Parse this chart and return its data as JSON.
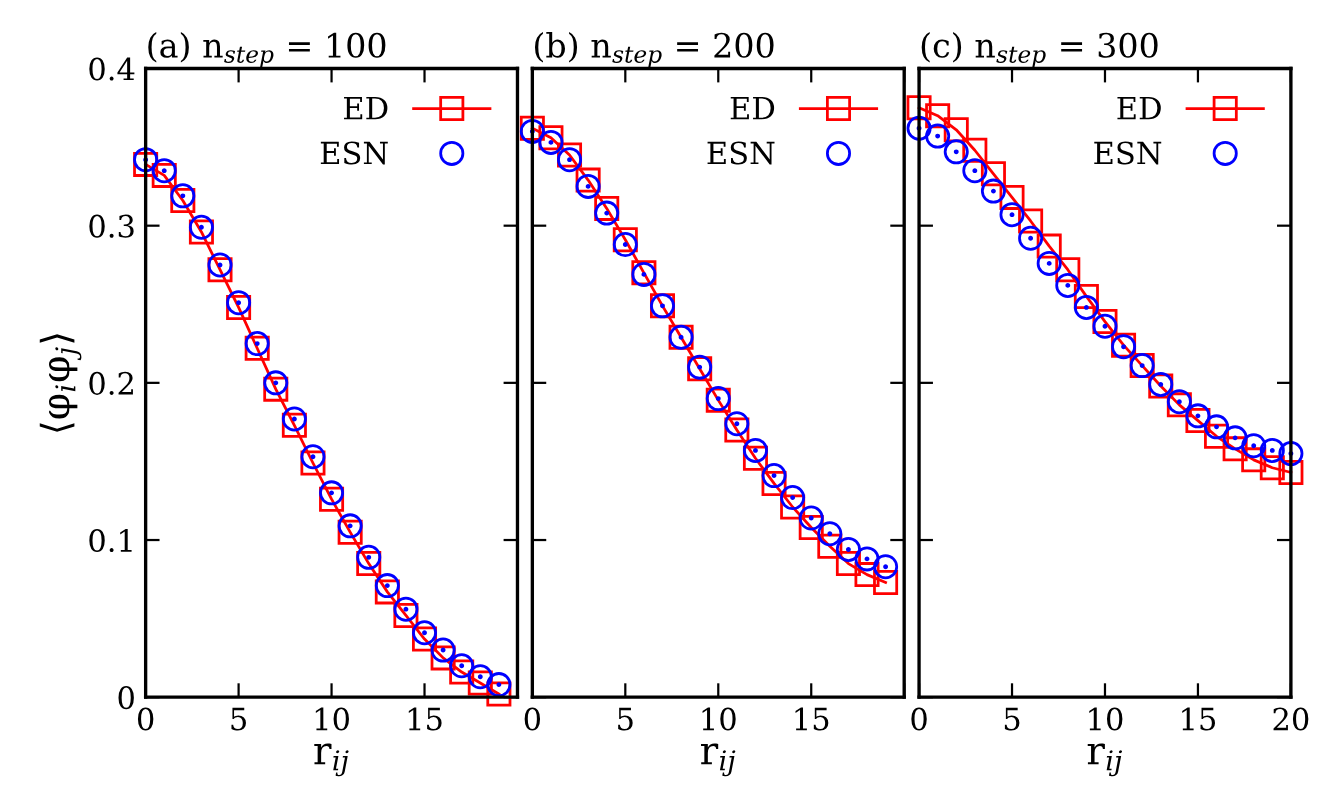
{
  "chart_data": [
    {
      "type": "line",
      "title": "(a) n$_{step}$ = 100",
      "xlabel": "r$_{ij}$",
      "ylabel": "⟨φ$_{i}$φ$_{j}$⟩",
      "x": [
        0,
        1,
        2,
        3,
        4,
        5,
        6,
        7,
        8,
        9,
        10,
        11,
        12,
        13,
        14,
        15,
        16,
        17,
        18,
        19
      ],
      "xlim": [
        0,
        20
      ],
      "xticks": [
        0,
        5,
        10,
        15,
        {
          "value": 20,
          "label": null
        }
      ],
      "ylim": [
        0,
        0.4
      ],
      "yticks": [
        0,
        0.1,
        0.2,
        0.3,
        0.4
      ],
      "legend": "top right",
      "grid": false,
      "series": [
        {
          "name": "ED",
          "marker": "square",
          "line_style": "solid",
          "color": "#ff0000",
          "values": [
            0.339,
            0.332,
            0.316,
            0.296,
            0.272,
            0.248,
            0.222,
            0.196,
            0.173,
            0.149,
            0.126,
            0.105,
            0.085,
            0.067,
            0.052,
            0.037,
            0.025,
            0.016,
            0.009,
            0.002
          ]
        },
        {
          "name": "ESN",
          "type": "scatter",
          "marker": "circle",
          "color": "#0000ff",
          "values": [
            0.342,
            0.335,
            0.319,
            0.299,
            0.275,
            0.251,
            0.225,
            0.2,
            0.177,
            0.153,
            0.13,
            0.109,
            0.089,
            0.071,
            0.056,
            0.041,
            0.03,
            0.02,
            0.013,
            0.008
          ]
        }
      ]
    },
    {
      "type": "line",
      "title": "(b) n$_{step}$ = 200",
      "xlabel": "r$_{ij}$",
      "x": [
        0,
        1,
        2,
        3,
        4,
        5,
        6,
        7,
        8,
        9,
        10,
        11,
        12,
        13,
        14,
        15,
        16,
        17,
        18,
        19
      ],
      "xlim": [
        0,
        20
      ],
      "xticks": [
        0,
        5,
        10,
        15,
        {
          "value": 20,
          "label": null
        }
      ],
      "ylim": [
        0,
        0.4
      ],
      "yticks": [
        0,
        0.1,
        0.2,
        0.3,
        0.4
      ],
      "tick_labels": "x",
      "legend": "top right",
      "grid": false,
      "series": [
        {
          "name": "ED",
          "marker": "square",
          "line_style": "solid",
          "color": "#ff0000",
          "values": [
            0.362,
            0.356,
            0.345,
            0.329,
            0.311,
            0.291,
            0.27,
            0.249,
            0.229,
            0.209,
            0.189,
            0.17,
            0.152,
            0.136,
            0.121,
            0.108,
            0.096,
            0.085,
            0.078,
            0.073
          ]
        },
        {
          "name": "ESN",
          "type": "scatter",
          "marker": "circle",
          "color": "#0000ff",
          "values": [
            0.36,
            0.353,
            0.342,
            0.325,
            0.308,
            0.288,
            0.269,
            0.249,
            0.229,
            0.21,
            0.19,
            0.174,
            0.157,
            0.141,
            0.127,
            0.114,
            0.104,
            0.094,
            0.088,
            0.083
          ]
        }
      ]
    },
    {
      "type": "line",
      "title": "(c) n$_{step}$ = 300",
      "xlabel": "r$_{ij}$",
      "x": [
        0,
        1,
        2,
        3,
        4,
        5,
        6,
        7,
        8,
        9,
        10,
        11,
        12,
        13,
        14,
        15,
        16,
        17,
        18,
        19,
        20
      ],
      "xlim": [
        0,
        20
      ],
      "xticks": [
        0,
        5,
        10,
        15,
        20
      ],
      "ylim": [
        0,
        0.4
      ],
      "yticks": [
        0,
        0.1,
        0.2,
        0.3,
        0.4
      ],
      "tick_labels": "x",
      "legend": "top right",
      "grid": false,
      "series": [
        {
          "name": "ED",
          "marker": "square",
          "line_style": "solid",
          "color": "#ff0000",
          "values": [
            0.375,
            0.37,
            0.361,
            0.348,
            0.333,
            0.318,
            0.303,
            0.287,
            0.272,
            0.255,
            0.239,
            0.224,
            0.211,
            0.198,
            0.186,
            0.176,
            0.166,
            0.158,
            0.151,
            0.146,
            0.143
          ]
        },
        {
          "name": "ESN",
          "type": "scatter",
          "marker": "circle",
          "color": "#0000ff",
          "values": [
            0.362,
            0.357,
            0.347,
            0.335,
            0.322,
            0.307,
            0.292,
            0.276,
            0.262,
            0.248,
            0.236,
            0.223,
            0.211,
            0.199,
            0.188,
            0.179,
            0.172,
            0.165,
            0.16,
            0.157,
            0.155
          ]
        }
      ]
    }
  ]
}
